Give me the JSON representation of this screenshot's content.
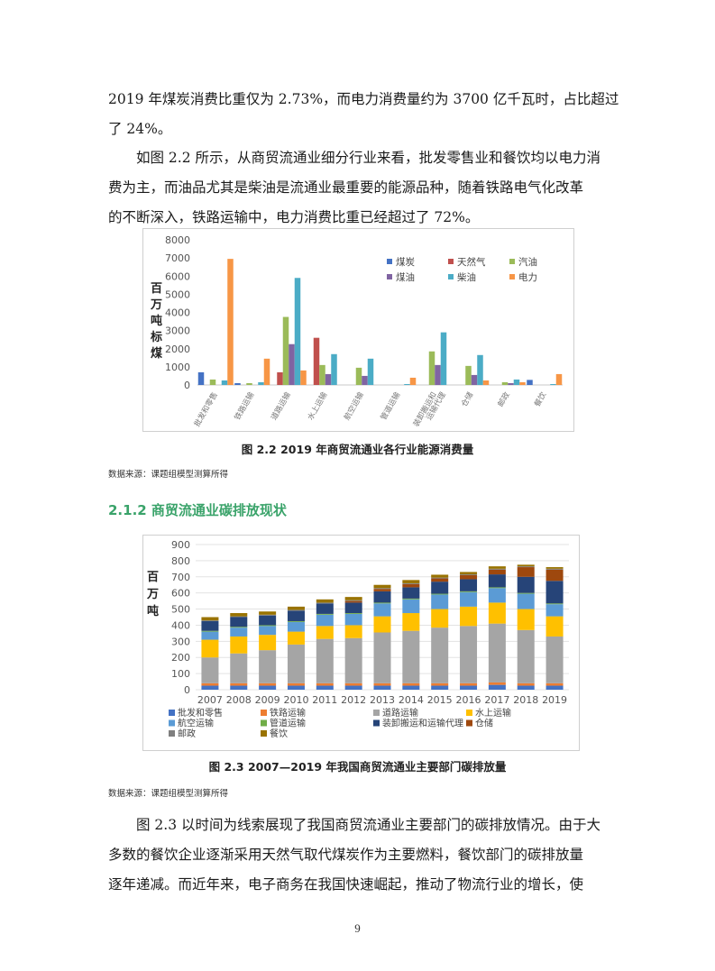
{
  "intro_text": {
    "lines": [
      "2019 年煤炭消费比重仅为 2.73%，而电力消费量约为 3700 亿千瓦时，占比超过",
      "了 24%。"
    ]
  },
  "para_fig22": {
    "lines": [
      "如图 2.2 所示，从商贸流通业细分行业来看，批发零售业和餐饮均以电力消",
      "费为主，而油品尤其是柴油是流通业最重要的能源品种，随着铁路电气化改革",
      "的不断深入，铁路运输中，电力消费比重已经超过了 72%。"
    ]
  },
  "figure_2_2": {
    "caption": "图 2.2  2019 年商贸流通业各行业能源消费量",
    "source": "数据来源：课题组模型测算所得"
  },
  "section": {
    "heading": "2.1.2 商贸流通业碳排放现状"
  },
  "figure_2_3": {
    "caption": "图 2.3   2007—2019 年我国商贸流通业主要部门碳排放量",
    "source": "数据来源：课题组模型测算所得"
  },
  "para_fig23": {
    "lines": [
      "图 2.3 以时间为线索展现了我国商贸流通业主要部门的碳排放情况。由于大",
      "多数的餐饮企业逐渐采用天然气取代煤炭作为主要燃料，餐饮部门的碳排放量",
      "逐年递减。而近年来，电子商务在我国快速崛起，推动了物流行业的增长，使"
    ]
  },
  "page_number": "9",
  "chart_data": [
    {
      "type": "bar",
      "title": "",
      "ylabel": "百万吨标煤",
      "ylim": [
        0,
        8000
      ],
      "yticks": [
        "0",
        "1000",
        "2000",
        "3000",
        "4000",
        "5000",
        "6000",
        "7000",
        "8000"
      ],
      "categories": [
        "批发和零售",
        "铁路运输",
        "道路运输",
        "水上运输",
        "航空运输",
        "管道运输",
        "装卸搬运和运输代理",
        "仓储",
        "邮政",
        "餐饮"
      ],
      "category_labels": [
        "批发和零售",
        "铁路运输",
        "道路运输",
        "水上运输",
        "航空运输",
        "管道运输",
        "装卸搬运和\n运输代理",
        "仓储",
        "邮政",
        "餐饮"
      ],
      "legend_position": "top-right",
      "grid": false,
      "series": [
        {
          "name": "煤炭",
          "color": "#4472c4",
          "values": [
            700,
            100,
            0,
            0,
            0,
            0,
            0,
            0,
            0,
            280
          ]
        },
        {
          "name": "天然气",
          "color": "#c0504d",
          "values": [
            0,
            0,
            700,
            2600,
            0,
            0,
            0,
            0,
            0,
            0
          ]
        },
        {
          "name": "汽油",
          "color": "#9bbb59",
          "values": [
            300,
            100,
            3750,
            1100,
            950,
            0,
            1850,
            1050,
            150,
            0
          ]
        },
        {
          "name": "煤油",
          "color": "#8064a2",
          "values": [
            0,
            0,
            2250,
            600,
            500,
            0,
            1100,
            550,
            100,
            0
          ]
        },
        {
          "name": "柴油",
          "color": "#4bacc6",
          "values": [
            250,
            150,
            5900,
            1700,
            1450,
            50,
            2900,
            1650,
            300,
            50
          ]
        },
        {
          "name": "电力",
          "color": "#f79646",
          "values": [
            6950,
            1450,
            800,
            0,
            0,
            400,
            0,
            250,
            150,
            600
          ]
        }
      ]
    },
    {
      "type": "bar",
      "stacked": true,
      "title": "",
      "ylabel": "百万吨",
      "ylim": [
        0,
        900
      ],
      "yticks": [
        "0",
        "100",
        "200",
        "300",
        "400",
        "500",
        "600",
        "700",
        "800",
        "900"
      ],
      "categories": [
        "2007",
        "2008",
        "2009",
        "2010",
        "2011",
        "2012",
        "2013",
        "2014",
        "2015",
        "2016",
        "2017",
        "2018",
        "2019"
      ],
      "legend_position": "bottom",
      "grid": true,
      "series": [
        {
          "name": "批发和零售",
          "color": "#4472c4",
          "values": [
            25,
            25,
            25,
            25,
            25,
            25,
            25,
            25,
            25,
            25,
            30,
            25,
            25
          ]
        },
        {
          "name": "铁路运输",
          "color": "#ed7d31",
          "values": [
            15,
            15,
            15,
            15,
            15,
            15,
            15,
            15,
            15,
            15,
            15,
            15,
            15
          ]
        },
        {
          "name": "道路运输",
          "color": "#a5a5a5",
          "values": [
            160,
            185,
            205,
            240,
            275,
            280,
            315,
            325,
            345,
            355,
            365,
            330,
            290
          ]
        },
        {
          "name": "水上运输",
          "color": "#ffc000",
          "values": [
            110,
            105,
            95,
            80,
            80,
            80,
            100,
            110,
            115,
            120,
            130,
            130,
            125
          ]
        },
        {
          "name": "航空运输",
          "color": "#5b9bd5",
          "values": [
            50,
            55,
            55,
            60,
            70,
            70,
            80,
            85,
            90,
            90,
            90,
            95,
            75
          ]
        },
        {
          "name": "管道运输",
          "color": "#70ad47",
          "values": [
            5,
            5,
            5,
            5,
            5,
            5,
            5,
            5,
            5,
            5,
            5,
            5,
            5
          ]
        },
        {
          "name": "装卸搬运和运输代理",
          "color": "#264478",
          "values": [
            60,
            60,
            60,
            65,
            65,
            65,
            70,
            70,
            75,
            75,
            80,
            100,
            140
          ]
        },
        {
          "name": "仓储",
          "color": "#9e480e",
          "values": [
            0,
            0,
            0,
            0,
            0,
            10,
            15,
            20,
            20,
            25,
            30,
            60,
            70
          ]
        },
        {
          "name": "邮政",
          "color": "#7f7f7f",
          "values": [
            5,
            5,
            5,
            5,
            5,
            5,
            5,
            5,
            5,
            5,
            5,
            5,
            5
          ]
        },
        {
          "name": "餐饮",
          "color": "#997300",
          "values": [
            20,
            20,
            20,
            20,
            20,
            20,
            20,
            20,
            18,
            15,
            15,
            10,
            10
          ]
        }
      ]
    }
  ]
}
